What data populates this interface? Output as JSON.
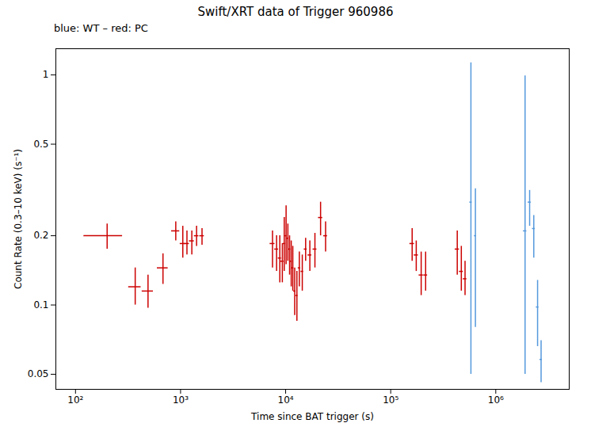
{
  "chart_data": {
    "type": "errorbar",
    "title": "Swift/XRT data of Trigger 960986",
    "subtitle": "blue: WT – red: PC",
    "xlabel": "Time since BAT trigger (s)",
    "ylabel": "Count Rate (0.3–10 keV) (s⁻¹)",
    "log": true,
    "xlim": [
      65,
      5000000.0
    ],
    "ylim": [
      0.043,
      1.3
    ],
    "xticks": [
      {
        "value": 100,
        "label": "10²"
      },
      {
        "value": 1000,
        "label": "10³"
      },
      {
        "value": 10000,
        "label": "10⁴"
      },
      {
        "value": 100000,
        "label": "10⁵"
      },
      {
        "value": 1000000,
        "label": "10⁶"
      }
    ],
    "yticks": [
      0.05,
      0.1,
      0.2,
      0.5,
      1
    ],
    "series": [
      {
        "color": "#cc0000",
        "x": [
          200,
          370,
          490,
          680,
          900,
          1050,
          1150,
          1280,
          1420,
          1600,
          7500,
          8200,
          8800,
          9300,
          9700,
          10100,
          10500,
          10900,
          11300,
          11700,
          12200,
          12800,
          13500,
          14400,
          15500,
          17000,
          19000,
          21500,
          24000,
          160000,
          175000,
          195000,
          215000,
          430000,
          470000,
          510000
        ],
        "x_err": [
          80,
          50,
          60,
          80,
          80,
          60,
          60,
          70,
          70,
          80,
          400,
          350,
          300,
          300,
          250,
          250,
          250,
          250,
          250,
          250,
          300,
          300,
          350,
          400,
          500,
          700,
          800,
          1000,
          1000,
          8000,
          8000,
          9000,
          9000,
          20000,
          20000,
          20000
        ],
        "values": [
          0.2,
          0.12,
          0.115,
          0.145,
          0.21,
          0.185,
          0.185,
          0.19,
          0.2,
          0.2,
          0.185,
          0.175,
          0.16,
          0.155,
          0.185,
          0.2,
          0.195,
          0.175,
          0.155,
          0.145,
          0.115,
          0.11,
          0.145,
          0.14,
          0.175,
          0.165,
          0.175,
          0.24,
          0.2,
          0.185,
          0.165,
          0.135,
          0.135,
          0.175,
          0.14,
          0.13
        ],
        "y_err_lo": [
          0.025,
          0.02,
          0.018,
          0.022,
          0.02,
          0.025,
          0.02,
          0.025,
          0.02,
          0.018,
          0.04,
          0.035,
          0.035,
          0.03,
          0.045,
          0.05,
          0.04,
          0.04,
          0.035,
          0.03,
          0.025,
          0.025,
          0.025,
          0.025,
          0.02,
          0.025,
          0.03,
          0.04,
          0.03,
          0.03,
          0.025,
          0.025,
          0.02,
          0.04,
          0.025,
          0.02
        ],
        "y_err_hi": [
          0.025,
          0.025,
          0.02,
          0.022,
          0.02,
          0.035,
          0.025,
          0.02,
          0.02,
          0.015,
          0.025,
          0.025,
          0.04,
          0.03,
          0.055,
          0.07,
          0.03,
          0.025,
          0.035,
          0.035,
          0.03,
          0.03,
          0.025,
          0.025,
          0.02,
          0.025,
          0.03,
          0.04,
          0.03,
          0.03,
          0.025,
          0.035,
          0.035,
          0.035,
          0.04,
          0.025
        ]
      },
      {
        "color": "#5599dd",
        "x": [
          580000,
          640000,
          1900000,
          2100000,
          2300000,
          2500000,
          2700000
        ],
        "x_err": [
          15000,
          15000,
          70000,
          70000,
          70000,
          70000,
          70000
        ],
        "values": [
          0.28,
          0.2,
          0.21,
          0.28,
          0.215,
          0.098,
          0.058
        ],
        "y_err_lo": [
          0.23,
          0.12,
          0.16,
          0.06,
          0.055,
          0.032,
          0.012
        ],
        "y_err_hi": [
          0.85,
          0.12,
          0.78,
          0.035,
          0.03,
          0.03,
          0.012
        ]
      }
    ]
  }
}
